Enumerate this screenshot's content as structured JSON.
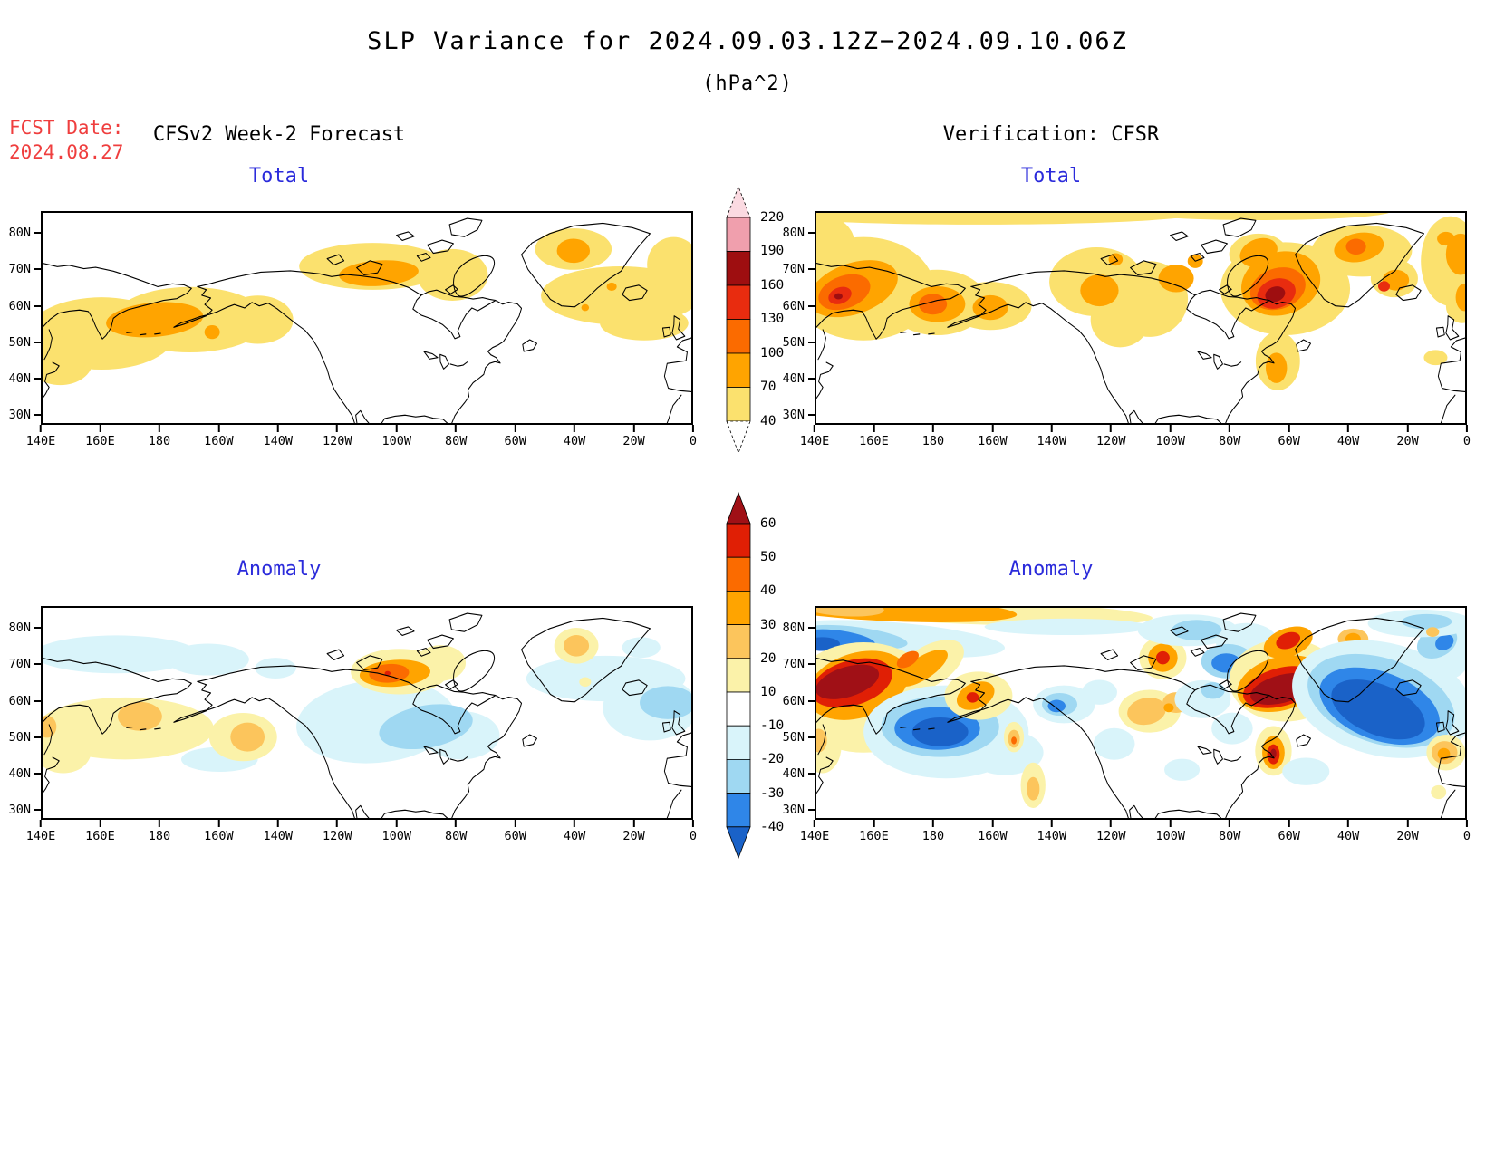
{
  "page": {
    "title": "SLP Variance for 2024.09.03.12Z−2024.09.10.06Z",
    "subtitle": "(hPa^2)",
    "fcst_label": "FCST Date:",
    "fcst_value": "2024.08.27",
    "left_header": "CFSv2 Week-2 Forecast",
    "right_header": "Verification: CFSR"
  },
  "panels": {
    "forecast_total": {
      "title": "Total"
    },
    "verification_total": {
      "title": "Total"
    },
    "forecast_anomaly": {
      "title": "Anomaly"
    },
    "verification_anomaly": {
      "title": "Anomaly"
    }
  },
  "axes": {
    "lon_ticks": [
      "140E",
      "160E",
      "180",
      "160W",
      "140W",
      "120W",
      "100W",
      "80W",
      "60W",
      "40W",
      "20W",
      "0"
    ],
    "lat_ticks": [
      "80N",
      "70N",
      "60N",
      "50N",
      "40N",
      "30N"
    ]
  },
  "colorbar_total": {
    "labels": [
      "220",
      "190",
      "160",
      "130",
      "100",
      "70",
      "40"
    ]
  },
  "colorbar_anomaly": {
    "labels": [
      "60",
      "50",
      "40",
      "30",
      "20",
      "10",
      "-10",
      "-20",
      "-30",
      "-40"
    ]
  },
  "colors": {
    "fcst_date_red": "#ef3e3e",
    "panel_title_blue": "#2b2bdb",
    "total_palette": [
      "#FBE16E",
      "#FFA400",
      "#FB6B00",
      "#E82C0F",
      "#9E0E10",
      "#F09FAD",
      "#FBDAE1"
    ],
    "anomaly_warm_palette": [
      "#FBF2A9",
      "#FCC55C",
      "#FFA400",
      "#FB6B00",
      "#E01F05",
      "#A01016"
    ],
    "anomaly_cool_palette": [
      "#D9F4FA",
      "#9FD8F2",
      "#2F86E8",
      "#1A62C8"
    ]
  },
  "chart_data": {
    "type": "heatmap",
    "subtype": "filled-contour-map-grid",
    "variable": "SLP Variance",
    "units": "hPa^2",
    "valid_period": "2024.09.03.12Z to 2024.09.10.06Z",
    "forecast_initialized": "2024.08.27",
    "grid": {
      "rows": [
        "Total",
        "Anomaly"
      ],
      "columns": [
        "CFSv2 Week-2 Forecast",
        "Verification: CFSR"
      ]
    },
    "map_domain": {
      "lon_ticks": [
        "140E",
        "160E",
        "180",
        "160W",
        "140W",
        "120W",
        "100W",
        "80W",
        "60W",
        "40W",
        "20W",
        "0"
      ],
      "lat_ticks": [
        "80N",
        "70N",
        "60N",
        "50N",
        "40N",
        "30N"
      ],
      "lon_range": [
        "140E",
        "0 (eastward across dateline)"
      ],
      "lat_range": [
        "~28N",
        "~86N"
      ]
    },
    "total_scale": {
      "levels": [
        40,
        70,
        100,
        130,
        160,
        190,
        220
      ],
      "colors": [
        "#FBE16E",
        "#FFA400",
        "#FB6B00",
        "#E82C0F",
        "#9E0E10",
        "#F09FAD",
        "#FBDAE1"
      ]
    },
    "anomaly_scale": {
      "levels": [
        -40,
        -30,
        -20,
        -10,
        10,
        20,
        30,
        40,
        50,
        60
      ],
      "colors": [
        "#1A62C8",
        "#2F86E8",
        "#9FD8F2",
        "#D9F4FA",
        "#FFFFFF",
        "#FBF2A9",
        "#FCC55C",
        "#FFA400",
        "#FB6B00",
        "#E01F05",
        "#A01016"
      ]
    },
    "panels": [
      {
        "id": "forecast_total",
        "features": [
          {
            "region": "North Pacific 160E-165W, 45-60N",
            "peak_value": "70-100"
          },
          {
            "region": "Northern Canada 125W-85W, 58-72N",
            "peak_value": "70-100"
          },
          {
            "region": "Central Greenland 45W-35W, 70-77N",
            "peak_value": "70-100"
          },
          {
            "region": "North Atlantic 60W-0, 45-72N",
            "peak_value": "40-70"
          }
        ]
      },
      {
        "id": "verification_total",
        "features": [
          {
            "region": "Sea of Okhotsk / Kamchatka 140E-165E, 55-65N",
            "peak_value": "160-190"
          },
          {
            "region": "Bering Sea 175E-170W, 50-60N",
            "peak_value": "130-160"
          },
          {
            "region": "Labrador / NE Canada 75W-50W, 55-70N",
            "peak_value": "160-190"
          },
          {
            "region": "North Greenland and Iceland 50W-20W, 62-76N",
            "peak_value": "100-130"
          },
          {
            "region": "NE Atlantic at right edge",
            "peak_value": "70-100"
          },
          {
            "region": "Thin band along 85N",
            "peak_value": "40-70"
          }
        ]
      },
      {
        "id": "forecast_anomaly",
        "features": [
          {
            "region": "NW Pacific 150E-175E, 48-58N",
            "peak_value": "+20 to +30"
          },
          {
            "region": "Gulf of Alaska 155W-145W, 45-52N",
            "peak_value": "+20 to +30"
          },
          {
            "region": "Northern Canada 115W-95W, 62-70N",
            "peak_value": "+40 to +50"
          },
          {
            "region": "Hudson Bay / Great Lakes 105W-75W, 42-57N",
            "peak_value": "-20 to -30"
          },
          {
            "region": "NE Atlantic near UK 30W-0, 48-62N",
            "peak_value": "-20 to -30"
          },
          {
            "region": "South-central Greenland 45W-35W, 70-77N",
            "peak_value": "+20 to +30"
          },
          {
            "region": "Arctic coastal band 140E-160W, 65-75N",
            "peak_value": "-10 to -20"
          }
        ]
      },
      {
        "id": "verification_anomaly",
        "features": [
          {
            "region": "Sea of Okhotsk / Kamchatka 140E-165E, 55-67N",
            "peak_value": "> +60"
          },
          {
            "region": "Central North Pacific 165E-165W, 42-57N",
            "peak_value": "< -40"
          },
          {
            "region": "Alaska 170W-150W, 54-63N",
            "peak_value": "+50 to +60"
          },
          {
            "region": "Labrador 75W-50W, 58-68N",
            "peak_value": "> +60"
          },
          {
            "region": "North Atlantic 50W-10W, 42-67N",
            "peak_value": "< -40"
          },
          {
            "region": "Off US east coast ~65W, 38-45N",
            "peak_value": "> +60 (small)"
          },
          {
            "region": "High-Arctic band 140E-180 near 84N (+) over 75N (-)",
            "peak_value": "+30 / -30"
          },
          {
            "region": "Northern Canada ~105W, 68-72N",
            "peak_value": "+50"
          },
          {
            "region": "NE Greenland 30W-20W, 70-76N",
            "peak_value": "+50"
          }
        ]
      }
    ]
  }
}
